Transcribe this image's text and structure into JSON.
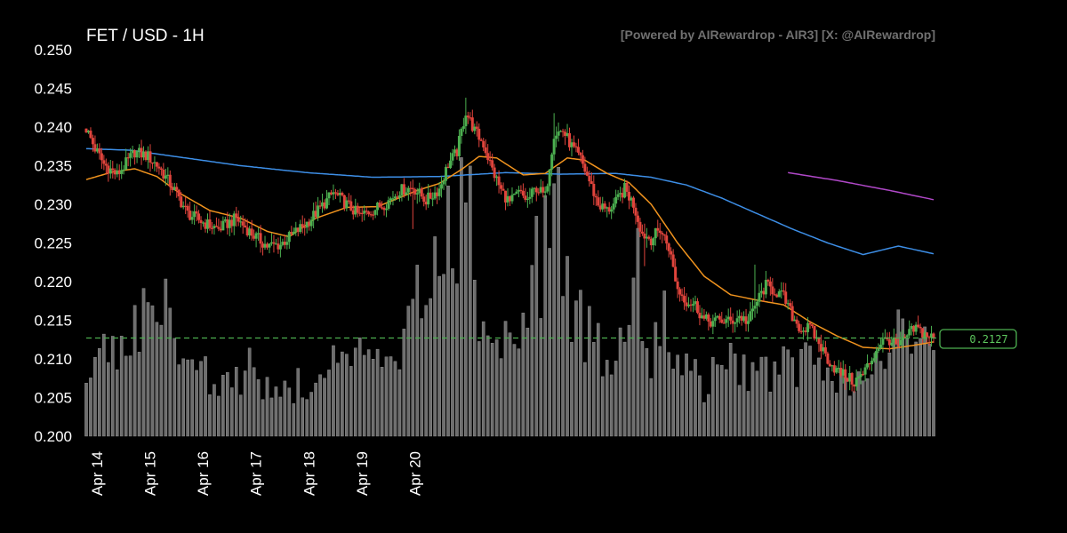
{
  "title": "FET / USD - 1H",
  "watermark": "[Powered by AIRewardrop - AIR3] [X: @AIRewardrop]",
  "current_price_label": "0.2127",
  "chart_data": {
    "type": "candlestick",
    "interval": "1H",
    "ylim": [
      0.2,
      0.25
    ],
    "yticks": [
      "0.250",
      "0.245",
      "0.240",
      "0.235",
      "0.230",
      "0.225",
      "0.220",
      "0.215",
      "0.210",
      "0.205",
      "0.200"
    ],
    "x_tick_labels": [
      "Apr 14",
      "Apr 15",
      "Apr 16",
      "Apr 17",
      "Apr 18",
      "Apr 19",
      "Apr 20"
    ],
    "last_price": 0.2127,
    "colors": {
      "up": "#4caf50",
      "down": "#e0443c",
      "volume": "#6e6e6e",
      "ma_fast": "#f0931e",
      "ma_mid": "#3d8ee6",
      "ma_slow": "#b048c8",
      "last_price_line": "#4caf50"
    },
    "price_path": [
      [
        0,
        0.2398
      ],
      [
        4,
        0.2372
      ],
      [
        8,
        0.2352
      ],
      [
        14,
        0.2338
      ],
      [
        22,
        0.2368
      ],
      [
        28,
        0.2362
      ],
      [
        33,
        0.2348
      ],
      [
        40,
        0.2318
      ],
      [
        46,
        0.2288
      ],
      [
        54,
        0.2275
      ],
      [
        60,
        0.2268
      ],
      [
        68,
        0.2282
      ],
      [
        75,
        0.2262
      ],
      [
        82,
        0.2246
      ],
      [
        88,
        0.2248
      ],
      [
        94,
        0.2262
      ],
      [
        100,
        0.2276
      ],
      [
        106,
        0.2295
      ],
      [
        112,
        0.2315
      ],
      [
        118,
        0.23
      ],
      [
        124,
        0.2285
      ],
      [
        130,
        0.2293
      ],
      [
        136,
        0.2302
      ],
      [
        142,
        0.2318
      ],
      [
        148,
        0.2322
      ],
      [
        154,
        0.2305
      ],
      [
        160,
        0.232
      ],
      [
        164,
        0.2352
      ],
      [
        168,
        0.2368
      ],
      [
        172,
        0.242
      ],
      [
        176,
        0.2395
      ],
      [
        180,
        0.2378
      ],
      [
        184,
        0.2345
      ],
      [
        188,
        0.2318
      ],
      [
        192,
        0.2302
      ],
      [
        196,
        0.2315
      ],
      [
        200,
        0.2305
      ],
      [
        204,
        0.2322
      ],
      [
        208,
        0.231
      ],
      [
        212,
        0.2392
      ],
      [
        216,
        0.2395
      ],
      [
        220,
        0.2375
      ],
      [
        224,
        0.2358
      ],
      [
        228,
        0.233
      ],
      [
        232,
        0.23
      ],
      [
        236,
        0.2292
      ],
      [
        240,
        0.2302
      ],
      [
        244,
        0.232
      ],
      [
        248,
        0.23
      ],
      [
        252,
        0.2262
      ],
      [
        256,
        0.2255
      ],
      [
        260,
        0.2268
      ],
      [
        264,
        0.2245
      ],
      [
        268,
        0.219
      ],
      [
        272,
        0.2175
      ],
      [
        276,
        0.217
      ],
      [
        280,
        0.215
      ],
      [
        284,
        0.2148
      ],
      [
        288,
        0.215
      ],
      [
        292,
        0.2148
      ],
      [
        296,
        0.2155
      ],
      [
        300,
        0.2148
      ],
      [
        304,
        0.2175
      ],
      [
        308,
        0.2195
      ],
      [
        312,
        0.2188
      ],
      [
        316,
        0.218
      ],
      [
        320,
        0.2155
      ],
      [
        324,
        0.2138
      ],
      [
        328,
        0.214
      ],
      [
        332,
        0.212
      ],
      [
        336,
        0.21
      ],
      [
        340,
        0.2085
      ],
      [
        344,
        0.2078
      ],
      [
        348,
        0.207
      ],
      [
        352,
        0.208
      ],
      [
        356,
        0.21
      ],
      [
        360,
        0.2122
      ],
      [
        364,
        0.2125
      ],
      [
        368,
        0.2115
      ],
      [
        372,
        0.213
      ],
      [
        376,
        0.214
      ],
      [
        380,
        0.2132
      ],
      [
        384,
        0.2127
      ]
    ],
    "spikes": [
      [
        148,
        0.2268,
        0.2332
      ],
      [
        172,
        0.2438,
        0.24
      ],
      [
        212,
        0.2418,
        0.237
      ],
      [
        253,
        0.2275,
        0.222
      ],
      [
        303,
        0.2222,
        0.2195
      ],
      [
        344,
        0.206,
        0.2072
      ]
    ],
    "volume_peaks": [
      [
        0,
        0.2
      ],
      [
        19,
        0.34
      ],
      [
        31,
        0.35
      ],
      [
        35,
        0.39
      ],
      [
        60,
        0.14
      ],
      [
        75,
        0.22
      ],
      [
        86,
        0.12
      ],
      [
        120,
        0.25
      ],
      [
        140,
        0.2
      ],
      [
        150,
        0.4
      ],
      [
        160,
        0.55
      ],
      [
        168,
        0.62
      ],
      [
        172,
        0.8
      ],
      [
        180,
        0.3
      ],
      [
        186,
        0.26
      ],
      [
        196,
        0.32
      ],
      [
        200,
        0.52
      ],
      [
        208,
        0.58
      ],
      [
        212,
        0.95
      ],
      [
        214,
        0.68
      ],
      [
        220,
        0.4
      ],
      [
        230,
        0.3
      ],
      [
        236,
        0.22
      ],
      [
        244,
        0.4
      ],
      [
        248,
        0.58
      ],
      [
        250,
        0.55
      ],
      [
        256,
        0.24
      ],
      [
        262,
        0.4
      ],
      [
        270,
        0.24
      ],
      [
        280,
        0.14
      ],
      [
        290,
        0.26
      ],
      [
        300,
        0.18
      ],
      [
        312,
        0.2
      ],
      [
        320,
        0.22
      ],
      [
        330,
        0.24
      ],
      [
        340,
        0.16
      ],
      [
        350,
        0.18
      ],
      [
        360,
        0.22
      ],
      [
        370,
        0.34
      ],
      [
        376,
        0.28
      ],
      [
        382,
        0.26
      ]
    ],
    "ma_fast": [
      [
        0,
        0.2332
      ],
      [
        12,
        0.2342
      ],
      [
        22,
        0.2346
      ],
      [
        32,
        0.2336
      ],
      [
        42,
        0.2315
      ],
      [
        56,
        0.2292
      ],
      [
        70,
        0.2282
      ],
      [
        82,
        0.2265
      ],
      [
        92,
        0.2258
      ],
      [
        104,
        0.2282
      ],
      [
        118,
        0.2296
      ],
      [
        132,
        0.2297
      ],
      [
        150,
        0.2318
      ],
      [
        160,
        0.2327
      ],
      [
        170,
        0.2345
      ],
      [
        178,
        0.2362
      ],
      [
        186,
        0.236
      ],
      [
        198,
        0.2338
      ],
      [
        208,
        0.234
      ],
      [
        218,
        0.236
      ],
      [
        226,
        0.2357
      ],
      [
        236,
        0.234
      ],
      [
        246,
        0.2328
      ],
      [
        256,
        0.23
      ],
      [
        268,
        0.225
      ],
      [
        280,
        0.2207
      ],
      [
        292,
        0.2183
      ],
      [
        304,
        0.2176
      ],
      [
        316,
        0.217
      ],
      [
        328,
        0.2148
      ],
      [
        340,
        0.213
      ],
      [
        352,
        0.2115
      ],
      [
        364,
        0.2113
      ],
      [
        376,
        0.2118
      ],
      [
        384,
        0.2122
      ]
    ],
    "ma_mid": [
      [
        0,
        0.2372
      ],
      [
        20,
        0.237
      ],
      [
        40,
        0.2362
      ],
      [
        70,
        0.235
      ],
      [
        100,
        0.2341
      ],
      [
        130,
        0.2335
      ],
      [
        160,
        0.2336
      ],
      [
        190,
        0.2341
      ],
      [
        215,
        0.2339
      ],
      [
        240,
        0.234
      ],
      [
        256,
        0.2335
      ],
      [
        272,
        0.2325
      ],
      [
        288,
        0.2308
      ],
      [
        304,
        0.2288
      ],
      [
        320,
        0.2268
      ],
      [
        336,
        0.225
      ],
      [
        352,
        0.2235
      ],
      [
        368,
        0.2246
      ],
      [
        384,
        0.2236
      ]
    ],
    "ma_slow": [
      [
        318,
        0.2341
      ],
      [
        340,
        0.2331
      ],
      [
        364,
        0.2318
      ],
      [
        384,
        0.2306
      ]
    ]
  }
}
